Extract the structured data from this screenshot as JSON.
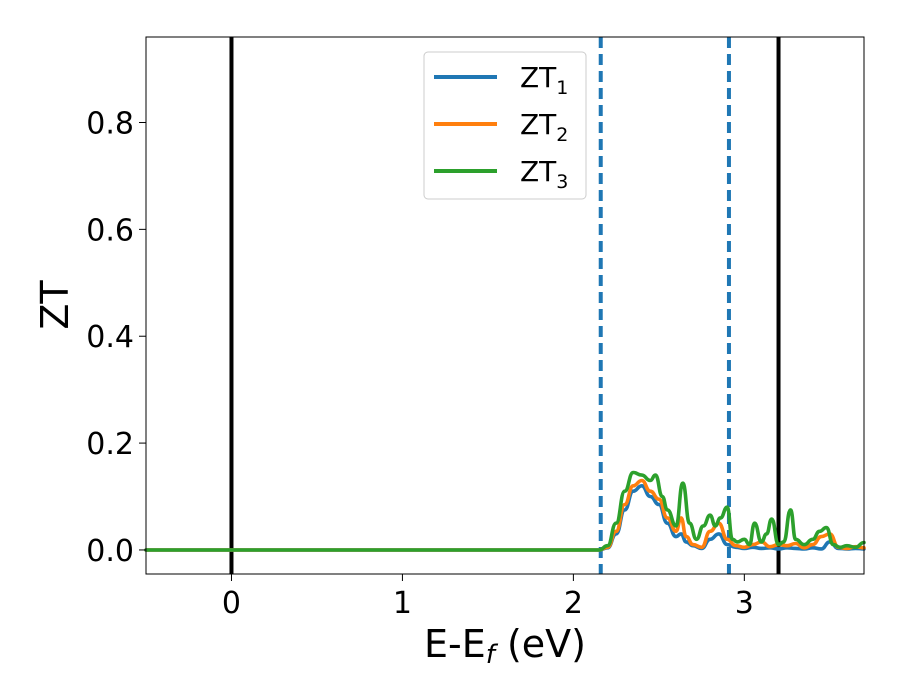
{
  "chart_data": {
    "type": "line",
    "xlabel": "E-E",
    "xlabel_sub": "f",
    "xlabel_unit": "(eV)",
    "ylabel": "ZT",
    "xlim": [
      -0.5,
      3.7
    ],
    "ylim": [
      -0.045,
      0.96
    ],
    "x_ticks": [
      0,
      1,
      2,
      3
    ],
    "x_tick_labels": [
      "0",
      "1",
      "2",
      "3"
    ],
    "y_ticks": [
      0.0,
      0.2,
      0.4,
      0.6,
      0.8
    ],
    "y_tick_labels": [
      "0.0",
      "0.2",
      "0.4",
      "0.6",
      "0.8"
    ],
    "grid": false,
    "legend_position": "top-center",
    "vertical_lines": [
      {
        "x": 0.0,
        "style": "solid",
        "color": "#000000"
      },
      {
        "x": 2.16,
        "style": "dashed",
        "color": "#1f77b4"
      },
      {
        "x": 2.91,
        "style": "dashed",
        "color": "#1f77b4"
      },
      {
        "x": 3.2,
        "style": "solid",
        "color": "#000000"
      }
    ],
    "series": [
      {
        "name": "ZT",
        "name_sub": "1",
        "color": "#1f77b4",
        "x": [
          -0.5,
          2.15,
          2.2,
          2.25,
          2.3,
          2.35,
          2.4,
          2.45,
          2.5,
          2.55,
          2.6,
          2.63,
          2.66,
          2.7,
          2.75,
          2.8,
          2.85,
          2.9,
          2.95,
          3.0,
          3.05,
          3.1,
          3.15,
          3.2,
          3.25,
          3.3,
          3.35,
          3.4,
          3.45,
          3.5,
          3.55,
          3.6,
          3.65,
          3.7
        ],
        "y": [
          0.0,
          0.0,
          0.004,
          0.03,
          0.075,
          0.11,
          0.12,
          0.1,
          0.085,
          0.05,
          0.025,
          0.03,
          0.015,
          0.008,
          0.003,
          0.02,
          0.03,
          0.01,
          0.005,
          0.003,
          0.005,
          0.003,
          0.004,
          0.002,
          0.004,
          0.003,
          0.002,
          0.004,
          0.002,
          0.015,
          0.003,
          0.002,
          0.003,
          0.002
        ]
      },
      {
        "name": "ZT",
        "name_sub": "2",
        "color": "#ff7f0e",
        "x": [
          -0.5,
          2.15,
          2.2,
          2.25,
          2.3,
          2.35,
          2.4,
          2.45,
          2.5,
          2.55,
          2.6,
          2.63,
          2.66,
          2.7,
          2.75,
          2.8,
          2.85,
          2.9,
          2.95,
          3.0,
          3.05,
          3.1,
          3.15,
          3.2,
          3.25,
          3.3,
          3.35,
          3.4,
          3.45,
          3.5,
          3.55,
          3.6,
          3.65,
          3.7
        ],
        "y": [
          0.0,
          0.0,
          0.005,
          0.035,
          0.085,
          0.12,
          0.13,
          0.11,
          0.095,
          0.06,
          0.035,
          0.06,
          0.025,
          0.01,
          0.005,
          0.035,
          0.05,
          0.02,
          0.008,
          0.005,
          0.01,
          0.015,
          0.006,
          0.01,
          0.008,
          0.012,
          0.004,
          0.01,
          0.025,
          0.03,
          0.005,
          0.003,
          0.006,
          0.004
        ]
      },
      {
        "name": "ZT",
        "name_sub": "3",
        "color": "#2ca02c",
        "x": [
          -0.5,
          2.15,
          2.2,
          2.25,
          2.3,
          2.35,
          2.4,
          2.45,
          2.48,
          2.52,
          2.55,
          2.6,
          2.64,
          2.68,
          2.72,
          2.76,
          2.8,
          2.83,
          2.86,
          2.9,
          2.93,
          2.96,
          3.0,
          3.03,
          3.06,
          3.1,
          3.13,
          3.16,
          3.2,
          3.23,
          3.27,
          3.3,
          3.35,
          3.4,
          3.44,
          3.48,
          3.52,
          3.56,
          3.6,
          3.65,
          3.7
        ],
        "y": [
          0.0,
          0.0,
          0.008,
          0.05,
          0.11,
          0.145,
          0.14,
          0.13,
          0.14,
          0.1,
          0.075,
          0.045,
          0.125,
          0.05,
          0.02,
          0.045,
          0.065,
          0.045,
          0.06,
          0.08,
          0.02,
          0.015,
          0.02,
          0.01,
          0.05,
          0.015,
          0.03,
          0.058,
          0.01,
          0.015,
          0.075,
          0.02,
          0.01,
          0.02,
          0.035,
          0.042,
          0.01,
          0.005,
          0.008,
          0.005,
          0.014
        ]
      }
    ]
  }
}
